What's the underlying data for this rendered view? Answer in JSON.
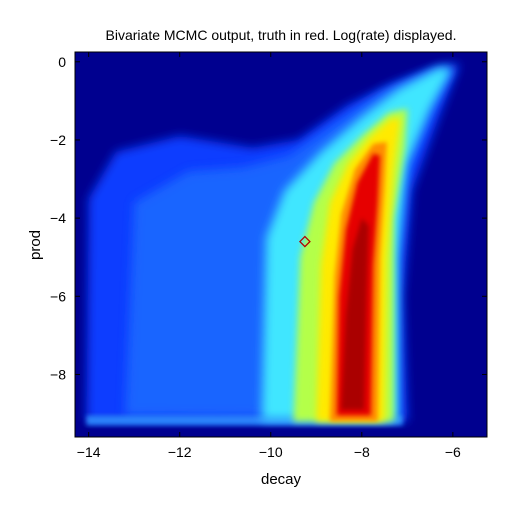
{
  "chart_data": {
    "type": "heatmap",
    "title": "Bivariate MCMC output, truth in red. Log(rate) displayed.",
    "xlabel": "decay",
    "ylabel": "prod",
    "xlim": [
      -14.3,
      -5.25
    ],
    "ylim": [
      -9.6,
      0.25
    ],
    "x_ticks": [
      -14,
      -12,
      -10,
      -8,
      -6
    ],
    "y_ticks": [
      0,
      -2,
      -4,
      -6,
      -8
    ],
    "x_tick_labels": [
      "−14",
      "−12",
      "−10",
      "−8",
      "−6"
    ],
    "y_tick_labels": [
      "0",
      "−2",
      "−4",
      "−6",
      "−8"
    ],
    "colormap": "jet",
    "background_color": "#00008f",
    "truth_point": {
      "x": -9.25,
      "y": -4.6,
      "color": "#b40000",
      "marker": "diamond"
    },
    "density_ridge": [
      {
        "y": -9.15,
        "x": -8.2
      },
      {
        "y": -8.0,
        "x": -8.15
      },
      {
        "y": -6.0,
        "x": -8.05
      },
      {
        "y": -4.0,
        "x": -7.95
      },
      {
        "y": -2.6,
        "x": -7.85
      },
      {
        "y": -1.5,
        "x": -7.3
      },
      {
        "y": -0.6,
        "x": -6.6
      },
      {
        "y": -0.1,
        "x": -6.0
      }
    ],
    "grid": false,
    "legend": "none"
  }
}
